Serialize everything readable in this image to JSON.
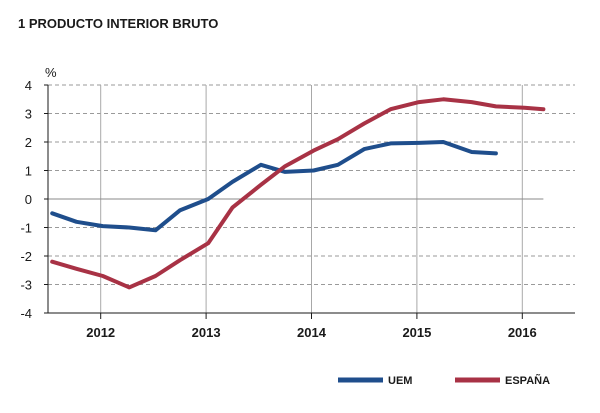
{
  "chart_data": {
    "type": "line",
    "title": "1  PRODUCTO INTERIOR BRUTO",
    "ylabel": "%",
    "ylim": [
      -4,
      4
    ],
    "yticks": [
      "4",
      "3",
      "2",
      "1",
      "0",
      "-1",
      "-2",
      "-3",
      "-4"
    ],
    "xlim": [
      2011.5,
      2016.5
    ],
    "categories": [
      "2012",
      "2013",
      "2014",
      "2015",
      "2016"
    ],
    "grid": true,
    "legend_position": "bottom-right",
    "series": [
      {
        "name": "UEM",
        "color": "#1f4e8c",
        "x": [
          2011.54,
          2011.77,
          2012.02,
          2012.27,
          2012.52,
          2012.75,
          2013.02,
          2013.25,
          2013.52,
          2013.75,
          2014.02,
          2014.25,
          2014.5,
          2014.75,
          2015.02,
          2015.25,
          2015.52,
          2015.75
        ],
        "values": [
          -0.5,
          -0.8,
          -0.95,
          -1.0,
          -1.1,
          -0.4,
          0.0,
          0.6,
          1.2,
          0.95,
          1.0,
          1.2,
          1.75,
          1.95,
          1.97,
          2.0,
          1.65,
          1.6
        ]
      },
      {
        "name": "ESPAÑA",
        "color": "#a83245",
        "x": [
          2011.54,
          2011.77,
          2012.02,
          2012.27,
          2012.52,
          2012.75,
          2013.02,
          2013.25,
          2013.52,
          2013.75,
          2014.02,
          2014.25,
          2014.5,
          2014.75,
          2015.02,
          2015.25,
          2015.52,
          2015.75,
          2016.02,
          2016.2
        ],
        "values": [
          -2.2,
          -2.45,
          -2.7,
          -3.1,
          -2.7,
          -2.15,
          -1.55,
          -0.3,
          0.5,
          1.15,
          1.7,
          2.1,
          2.65,
          3.15,
          3.4,
          3.5,
          3.4,
          3.25,
          3.2,
          3.15
        ]
      }
    ]
  }
}
